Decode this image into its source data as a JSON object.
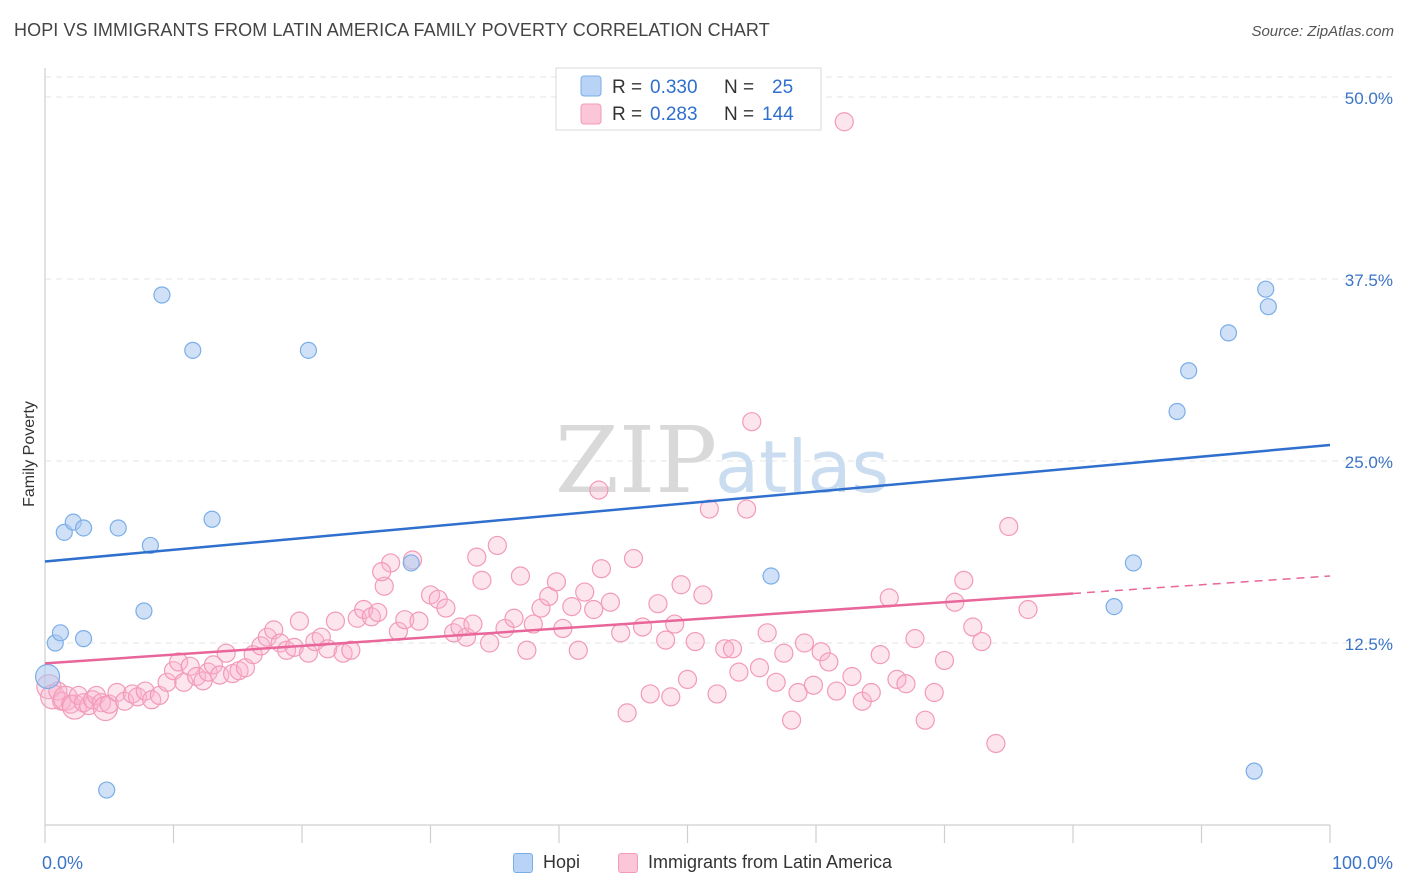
{
  "title": "HOPI VS IMMIGRANTS FROM LATIN AMERICA FAMILY POVERTY CORRELATION CHART",
  "source": "Source: ZipAtlas.com",
  "watermark": {
    "zip": "ZIP",
    "atlas": "atlas"
  },
  "chart_data": {
    "type": "scatter",
    "title": "HOPI VS IMMIGRANTS FROM LATIN AMERICA FAMILY POVERTY CORRELATION CHART",
    "xlabel": "",
    "ylabel": "Family Poverty",
    "xlim": [
      0,
      100
    ],
    "ylim": [
      0,
      50
    ],
    "x_tick_labels": {
      "left": "0.0%",
      "right": "100.0%"
    },
    "y_ticks": [
      {
        "value": 12.5,
        "label": "12.5%"
      },
      {
        "value": 25.0,
        "label": "25.0%"
      },
      {
        "value": 37.5,
        "label": "37.5%"
      },
      {
        "value": 50.0,
        "label": "50.0%"
      }
    ],
    "legend": {
      "r_label": "R =",
      "n_label": "N =",
      "entries": [
        {
          "name": "Hopi",
          "r": "0.330",
          "n": "25"
        },
        {
          "name": "Immigrants from Latin America",
          "r": "0.283",
          "n": "144"
        }
      ]
    },
    "series": [
      {
        "name": "Hopi",
        "color": "#7aaee8",
        "line_color": "#2f6fce",
        "trend": {
          "x0": 0,
          "y0": 18.1,
          "x1": 100,
          "y1": 26.1,
          "dashed_from": null
        },
        "points": [
          [
            0.2,
            10.2,
            12
          ],
          [
            0.8,
            12.5,
            8
          ],
          [
            1.2,
            13.2,
            8
          ],
          [
            1.5,
            20.1,
            8
          ],
          [
            2.2,
            20.8,
            8
          ],
          [
            3.0,
            20.4,
            8
          ],
          [
            3.0,
            12.8,
            8
          ],
          [
            4.8,
            2.4,
            8
          ],
          [
            5.7,
            20.4,
            8
          ],
          [
            7.7,
            14.7,
            8
          ],
          [
            8.2,
            19.2,
            8
          ],
          [
            9.1,
            36.4,
            8
          ],
          [
            11.5,
            32.6,
            8
          ],
          [
            13.0,
            21.0,
            8
          ],
          [
            20.5,
            32.6,
            8
          ],
          [
            28.5,
            18.0,
            8
          ],
          [
            56.5,
            17.1,
            8
          ],
          [
            83.2,
            15.0,
            8
          ],
          [
            84.7,
            18.0,
            8
          ],
          [
            88.1,
            28.4,
            8
          ],
          [
            89.0,
            31.2,
            8
          ],
          [
            92.1,
            33.8,
            8
          ],
          [
            94.1,
            3.7,
            8
          ],
          [
            95.0,
            36.8,
            8
          ],
          [
            95.2,
            35.6,
            8
          ]
        ]
      },
      {
        "name": "Immigrants from Latin America",
        "color": "#f29ab8",
        "line_color": "#e8669a",
        "trend": {
          "x0": 0,
          "y0": 11.1,
          "x1": 100,
          "y1": 17.1,
          "dashed_from": 80
        },
        "points": [
          [
            0.3,
            9.5,
            12
          ],
          [
            0.6,
            8.8,
            12
          ],
          [
            1.0,
            9.2,
            9
          ],
          [
            1.3,
            8.5,
            9
          ],
          [
            1.6,
            8.7,
            12
          ],
          [
            2.0,
            8.3,
            9
          ],
          [
            2.3,
            8.1,
            12
          ],
          [
            2.6,
            8.9,
            9
          ],
          [
            3.0,
            8.4,
            9
          ],
          [
            3.4,
            8.2,
            9
          ],
          [
            3.7,
            8.6,
            9
          ],
          [
            4.0,
            8.9,
            9
          ],
          [
            4.4,
            8.4,
            9
          ],
          [
            4.7,
            8.0,
            12
          ],
          [
            5.0,
            8.3,
            9
          ],
          [
            5.6,
            9.1,
            9
          ],
          [
            6.2,
            8.5,
            9
          ],
          [
            6.8,
            9.0,
            9
          ],
          [
            7.2,
            8.8,
            9
          ],
          [
            7.8,
            9.2,
            9
          ],
          [
            8.3,
            8.6,
            9
          ],
          [
            8.9,
            8.9,
            9
          ],
          [
            9.5,
            9.8,
            9
          ],
          [
            10.0,
            10.6,
            9
          ],
          [
            10.4,
            11.2,
            9
          ],
          [
            10.8,
            9.8,
            9
          ],
          [
            11.3,
            10.9,
            9
          ],
          [
            11.8,
            10.2,
            9
          ],
          [
            12.3,
            9.9,
            9
          ],
          [
            12.7,
            10.5,
            9
          ],
          [
            13.1,
            11.0,
            9
          ],
          [
            13.6,
            10.3,
            9
          ],
          [
            14.1,
            11.8,
            9
          ],
          [
            14.6,
            10.4,
            9
          ],
          [
            15.1,
            10.6,
            9
          ],
          [
            15.6,
            10.8,
            9
          ],
          [
            16.2,
            11.7,
            9
          ],
          [
            16.8,
            12.3,
            9
          ],
          [
            17.3,
            12.9,
            9
          ],
          [
            17.8,
            13.4,
            9
          ],
          [
            18.3,
            12.5,
            9
          ],
          [
            18.8,
            12.0,
            9
          ],
          [
            19.4,
            12.2,
            9
          ],
          [
            19.8,
            14.0,
            9
          ],
          [
            20.5,
            11.8,
            9
          ],
          [
            21.0,
            12.6,
            9
          ],
          [
            21.5,
            12.9,
            9
          ],
          [
            22.0,
            12.1,
            9
          ],
          [
            22.6,
            14.0,
            9
          ],
          [
            23.2,
            11.8,
            9
          ],
          [
            23.8,
            12.0,
            9
          ],
          [
            24.3,
            14.2,
            9
          ],
          [
            24.8,
            14.8,
            9
          ],
          [
            25.4,
            14.3,
            9
          ],
          [
            25.9,
            14.6,
            9
          ],
          [
            26.4,
            16.4,
            9
          ],
          [
            26.9,
            18.0,
            9
          ],
          [
            27.5,
            13.3,
            9
          ],
          [
            28.0,
            14.1,
            9
          ],
          [
            28.6,
            18.2,
            9
          ],
          [
            29.1,
            14.0,
            9
          ],
          [
            30.0,
            15.8,
            9
          ],
          [
            30.6,
            15.5,
            9
          ],
          [
            31.2,
            14.9,
            9
          ],
          [
            31.8,
            13.2,
            9
          ],
          [
            32.3,
            13.6,
            9
          ],
          [
            32.8,
            12.9,
            9
          ],
          [
            33.3,
            13.8,
            9
          ],
          [
            34.0,
            16.8,
            9
          ],
          [
            34.6,
            12.5,
            9
          ],
          [
            35.2,
            19.2,
            9
          ],
          [
            35.8,
            13.5,
            9
          ],
          [
            36.5,
            14.2,
            9
          ],
          [
            37.0,
            17.1,
            9
          ],
          [
            37.5,
            12.0,
            9
          ],
          [
            38.0,
            13.8,
            9
          ],
          [
            38.6,
            14.9,
            9
          ],
          [
            39.2,
            15.7,
            9
          ],
          [
            39.8,
            16.7,
            9
          ],
          [
            40.3,
            13.5,
            9
          ],
          [
            41.0,
            15.0,
            9
          ],
          [
            41.5,
            12.0,
            9
          ],
          [
            42.0,
            16.0,
            9
          ],
          [
            42.7,
            14.8,
            9
          ],
          [
            43.3,
            17.6,
            9
          ],
          [
            44.0,
            15.3,
            9
          ],
          [
            44.8,
            13.2,
            9
          ],
          [
            45.3,
            7.7,
            9
          ],
          [
            45.8,
            18.3,
            9
          ],
          [
            46.5,
            13.6,
            9
          ],
          [
            47.1,
            9.0,
            9
          ],
          [
            47.7,
            15.2,
            9
          ],
          [
            48.3,
            12.7,
            9
          ],
          [
            49.0,
            13.8,
            9
          ],
          [
            49.5,
            16.5,
            9
          ],
          [
            50.0,
            10.0,
            9
          ],
          [
            50.6,
            12.6,
            9
          ],
          [
            51.2,
            15.8,
            9
          ],
          [
            51.7,
            21.7,
            9
          ],
          [
            52.3,
            9.0,
            9
          ],
          [
            52.9,
            12.1,
            9
          ],
          [
            53.5,
            12.1,
            9
          ],
          [
            54.0,
            10.5,
            9
          ],
          [
            54.6,
            21.7,
            9
          ],
          [
            55.0,
            27.7,
            9
          ],
          [
            55.6,
            10.8,
            9
          ],
          [
            56.2,
            13.2,
            9
          ],
          [
            56.9,
            9.8,
            9
          ],
          [
            57.5,
            11.8,
            9
          ],
          [
            58.1,
            7.2,
            9
          ],
          [
            58.6,
            9.1,
            9
          ],
          [
            59.1,
            12.5,
            9
          ],
          [
            59.8,
            9.6,
            9
          ],
          [
            60.4,
            11.9,
            9
          ],
          [
            61.0,
            11.2,
            9
          ],
          [
            61.6,
            9.2,
            9
          ],
          [
            62.2,
            48.3,
            9
          ],
          [
            62.8,
            10.2,
            9
          ],
          [
            63.6,
            8.5,
            9
          ],
          [
            64.3,
            9.1,
            9
          ],
          [
            65.0,
            11.7,
            9
          ],
          [
            65.7,
            15.6,
            9
          ],
          [
            66.3,
            10.0,
            9
          ],
          [
            67.0,
            9.7,
            9
          ],
          [
            67.7,
            12.8,
            9
          ],
          [
            68.5,
            7.2,
            9
          ],
          [
            69.2,
            9.1,
            9
          ],
          [
            70.0,
            11.3,
            9
          ],
          [
            70.8,
            15.3,
            9
          ],
          [
            71.5,
            16.8,
            9
          ],
          [
            72.2,
            13.6,
            9
          ],
          [
            72.9,
            12.6,
            9
          ],
          [
            74.0,
            5.6,
            9
          ],
          [
            75.0,
            20.5,
            9
          ],
          [
            76.5,
            14.8,
            9
          ],
          [
            48.7,
            8.8,
            9
          ],
          [
            43.1,
            23.0,
            9
          ],
          [
            33.6,
            18.4,
            9
          ],
          [
            26.2,
            17.4,
            9
          ]
        ]
      }
    ]
  }
}
